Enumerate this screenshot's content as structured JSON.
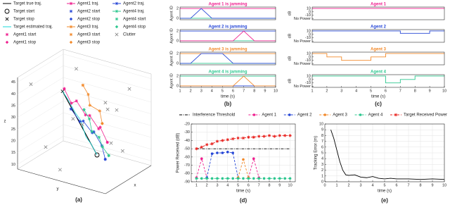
{
  "chart_data": [
    {
      "type": "line3d",
      "caption": "(a)",
      "x_label": "x",
      "y_label": "y",
      "z_label": "z",
      "xlim": [
        0,
        50
      ],
      "ylim": [
        0,
        50
      ],
      "zlim": [
        8,
        47
      ],
      "zticks": [
        10,
        15,
        20,
        25,
        30,
        35,
        40,
        45
      ],
      "grid": true,
      "series": [
        {
          "name": "Target true traj.",
          "color": "#000000",
          "line": "solid",
          "x": [
            10,
            30
          ],
          "y": [
            40,
            10
          ],
          "z": [
            20,
            36
          ]
        },
        {
          "name": "Target start",
          "color": "#000000",
          "line": "none",
          "marker": "ring",
          "x": [
            10
          ],
          "y": [
            40
          ],
          "z": [
            20
          ]
        },
        {
          "name": "Target stop",
          "color": "#000000",
          "line": "none",
          "marker": "cross",
          "x": [
            30
          ],
          "y": [
            10
          ],
          "z": [
            36
          ]
        },
        {
          "name": "Target estimated traj.",
          "color": "#18d8d8",
          "line": "solid",
          "x": [
            10,
            13,
            17,
            21,
            25,
            28,
            30
          ],
          "y": [
            40,
            35,
            30,
            25,
            20,
            14,
            10
          ],
          "z": [
            20,
            23,
            24,
            29,
            30,
            34,
            36
          ]
        },
        {
          "name": "Agent1 start",
          "color": "#ef1f8f",
          "line": "none",
          "marker": "star",
          "x": [
            28
          ],
          "y": [
            12
          ],
          "z": [
            38
          ]
        },
        {
          "name": "Agent1 stop",
          "color": "#ef1f8f",
          "line": "none",
          "marker": "diamond",
          "x": [
            29
          ],
          "y": [
            36
          ],
          "z": [
            20
          ]
        },
        {
          "name": "Agent1 traj.",
          "color": "#ef1f8f",
          "line": "solid",
          "marker": "star",
          "x": [
            28,
            30,
            26,
            32,
            27,
            31,
            25,
            29
          ],
          "y": [
            12,
            15,
            20,
            22,
            27,
            30,
            34,
            36
          ],
          "z": [
            38,
            32,
            35,
            28,
            30,
            24,
            27,
            20
          ]
        },
        {
          "name": "Agent2 start",
          "color": "#2546d6",
          "line": "none",
          "marker": "star",
          "x": [
            20
          ],
          "y": [
            20
          ],
          "z": [
            33
          ]
        },
        {
          "name": "Agent2 stop",
          "color": "#2546d6",
          "line": "none",
          "marker": "diamond",
          "x": [
            19
          ],
          "y": [
            40
          ],
          "z": [
            16
          ]
        },
        {
          "name": "Agent3 traj.",
          "color": "#f2892a",
          "line": "solid",
          "marker": "star",
          "x": [
            33,
            35,
            31,
            36,
            33
          ],
          "y": [
            20,
            22,
            25,
            28,
            31
          ],
          "z": [
            40,
            36,
            33,
            30,
            26
          ]
        },
        {
          "name": "Agent3 start",
          "color": "#f2892a",
          "line": "none",
          "marker": "star",
          "x": [
            33
          ],
          "y": [
            20
          ],
          "z": [
            40
          ]
        },
        {
          "name": "Agent3 stop",
          "color": "#f2892a",
          "line": "none",
          "marker": "diamond",
          "x": [
            33
          ],
          "y": [
            31
          ],
          "z": [
            26
          ]
        },
        {
          "name": "Agent2 traj.",
          "color": "#2546d6",
          "line": "solid",
          "marker": "star",
          "x": [
            20,
            22,
            18,
            24,
            20,
            23,
            19
          ],
          "y": [
            20,
            24,
            28,
            30,
            33,
            36,
            40
          ],
          "z": [
            33,
            28,
            30,
            24,
            26,
            20,
            16
          ]
        },
        {
          "name": "Agent4 traj.",
          "color": "#2dc78f",
          "line": "solid",
          "marker": "star",
          "x": [
            15,
            17,
            14,
            18,
            16,
            19
          ],
          "y": [
            30,
            32,
            35,
            37,
            40,
            42
          ],
          "z": [
            36,
            32,
            28,
            25,
            22,
            18
          ]
        },
        {
          "name": "Agent4 start",
          "color": "#2dc78f",
          "line": "none",
          "marker": "star",
          "x": [
            15
          ],
          "y": [
            30
          ],
          "z": [
            36
          ]
        },
        {
          "name": "Agent4 stop",
          "color": "#2dc78f",
          "line": "none",
          "marker": "diamond",
          "x": [
            19
          ],
          "y": [
            42
          ],
          "z": [
            18
          ]
        },
        {
          "name": "Clutter",
          "color": "#888888",
          "line": "none",
          "marker": "cross",
          "x": [
            5,
            45,
            12,
            38,
            25,
            48,
            3,
            30,
            42,
            8,
            20,
            35
          ],
          "y": [
            5,
            10,
            45,
            40,
            3,
            25,
            30,
            48,
            15,
            20,
            46,
            35
          ],
          "z": [
            44,
            42,
            40,
            15,
            12,
            30,
            35,
            45,
            20,
            10,
            38,
            18
          ]
        }
      ]
    },
    {
      "type": "line",
      "title": "Agent 1 is jamming",
      "title_color": "#ef1f8f",
      "y_label": "Agent ID",
      "x": [
        1,
        2,
        3,
        4,
        5,
        6,
        7,
        8,
        9,
        10
      ],
      "xlim": [
        1,
        10
      ],
      "ylim": [
        -0.3,
        2.3
      ],
      "yticks": [
        0,
        2
      ],
      "series": [
        {
          "color": "#ef1f8f",
          "values": [
            2,
            2,
            2,
            2,
            2,
            2,
            2,
            2,
            2,
            2
          ]
        },
        {
          "color": "#2dc78f",
          "values": [
            0,
            0,
            0,
            0,
            0,
            0,
            0,
            0,
            0,
            0
          ]
        },
        {
          "color": "#2546d6",
          "values": [
            0,
            0,
            2,
            0,
            0,
            0,
            0,
            0,
            0,
            0
          ]
        }
      ]
    },
    {
      "type": "line",
      "title": "Agent 2 is jamming",
      "title_color": "#2546d6",
      "y_label": "Agent ID",
      "x": [
        1,
        2,
        3,
        4,
        5,
        6,
        7,
        8,
        9,
        10
      ],
      "xlim": [
        1,
        10
      ],
      "ylim": [
        -0.3,
        2.3
      ],
      "yticks": [
        0,
        2
      ],
      "series": [
        {
          "color": "#2546d6",
          "values": [
            2,
            2,
            2,
            2,
            2,
            2,
            2,
            2,
            2,
            2
          ]
        },
        {
          "color": "#2dc78f",
          "values": [
            0,
            0,
            0,
            0,
            0,
            0,
            0,
            0,
            0,
            0
          ]
        },
        {
          "color": "#ef1f8f",
          "values": [
            0,
            0,
            0,
            0,
            0,
            0,
            2,
            0,
            0,
            0
          ]
        }
      ]
    },
    {
      "type": "line",
      "title": "Agent 3 is jamming",
      "title_color": "#f2892a",
      "y_label": "Agent ID",
      "x": [
        1,
        2,
        3,
        4,
        5,
        6,
        7,
        8,
        9,
        10
      ],
      "xlim": [
        1,
        10
      ],
      "ylim": [
        -0.3,
        2.3
      ],
      "yticks": [
        0,
        2
      ],
      "series": [
        {
          "color": "#f2892a",
          "values": [
            2,
            2,
            2,
            2,
            2,
            2,
            2,
            2,
            2,
            2
          ]
        },
        {
          "color": "#2dc78f",
          "values": [
            0,
            0,
            0,
            0,
            0,
            0,
            0,
            0,
            0,
            0
          ]
        },
        {
          "color": "#2546d6",
          "values": [
            0,
            0,
            2,
            2,
            2,
            0,
            0,
            0,
            0,
            0
          ]
        }
      ]
    },
    {
      "type": "line",
      "title": "Agent 4 is jamming",
      "title_color": "#2dc78f",
      "y_label": "Agent ID",
      "x_label": "time (s)",
      "caption": "(b)",
      "x": [
        1,
        2,
        3,
        4,
        5,
        6,
        7,
        8,
        9,
        10
      ],
      "xlim": [
        1,
        10
      ],
      "xticks": [
        1,
        2,
        3,
        4,
        5,
        6,
        7,
        8,
        9,
        10
      ],
      "ylim": [
        -0.3,
        2.3
      ],
      "yticks": [
        0,
        2
      ],
      "series": [
        {
          "color": "#2dc78f",
          "values": [
            2,
            2,
            2,
            2,
            2,
            2,
            2,
            2,
            2,
            2
          ]
        },
        {
          "color": "#2546d6",
          "values": [
            0,
            0,
            0,
            0,
            0,
            0,
            0,
            0,
            0,
            0
          ]
        },
        {
          "color": "#f2892a",
          "values": [
            0,
            0,
            0,
            0,
            0,
            0,
            2,
            0,
            0,
            0
          ]
        }
      ]
    },
    {
      "type": "step",
      "title": "Agent 1",
      "title_color": "#ef1f8f",
      "y_label": "dB",
      "x": [
        1,
        2,
        3,
        4,
        5,
        6,
        7,
        8,
        9,
        10
      ],
      "xlim": [
        1,
        10
      ],
      "ylim": [
        -23,
        14
      ],
      "yticks": [
        10,
        0,
        -10,
        {
          "value": -20,
          "label": "No Power"
        }
      ],
      "series": [
        {
          "color": "#ef1f8f",
          "values": [
            10,
            10,
            10,
            10,
            10,
            10,
            10,
            10,
            10,
            10
          ]
        }
      ]
    },
    {
      "type": "step",
      "title": "Agent 2",
      "title_color": "#2546d6",
      "y_label": "dB",
      "x": [
        1,
        2,
        3,
        4,
        5,
        6,
        7,
        8,
        9,
        10
      ],
      "xlim": [
        1,
        10
      ],
      "ylim": [
        -23,
        14
      ],
      "yticks": [
        10,
        0,
        -10,
        {
          "value": -20,
          "label": "No Power"
        }
      ],
      "series": [
        {
          "color": "#2546d6",
          "values": [
            10,
            10,
            10,
            10,
            10,
            10,
            3,
            3,
            10,
            10
          ]
        }
      ]
    },
    {
      "type": "step",
      "title": "Agent 3",
      "title_color": "#f2892a",
      "y_label": "dB",
      "x": [
        1,
        2,
        3,
        4,
        5,
        6,
        7,
        8,
        9,
        10
      ],
      "xlim": [
        1,
        10
      ],
      "ylim": [
        -23,
        14
      ],
      "yticks": [
        10,
        0,
        -10,
        {
          "value": -20,
          "label": "No Power"
        }
      ],
      "series": [
        {
          "color": "#f2892a",
          "values": [
            10,
            0,
            -10,
            -10,
            0,
            10,
            10,
            10,
            10,
            10
          ]
        }
      ]
    },
    {
      "type": "step",
      "title": "Agent 4",
      "title_color": "#2dc78f",
      "y_label": "dB",
      "x_label": "time (s)",
      "caption": "(c)",
      "x": [
        1,
        2,
        3,
        4,
        5,
        6,
        7,
        8,
        9,
        10
      ],
      "xlim": [
        1,
        10
      ],
      "xticks": [
        1,
        2,
        3,
        4,
        5,
        6,
        7,
        8,
        9,
        10
      ],
      "ylim": [
        -23,
        14
      ],
      "yticks": [
        10,
        0,
        -10,
        {
          "value": -20,
          "label": "No Power"
        }
      ],
      "series": [
        {
          "color": "#2dc78f",
          "values": [
            10,
            10,
            10,
            10,
            10,
            -10,
            0,
            10,
            10,
            10
          ]
        }
      ]
    },
    {
      "type": "line",
      "y_label": "Power Received (dB)",
      "x_label": "time (s)",
      "caption": "(d)",
      "legend": "top",
      "grid": true,
      "x": [
        1,
        1.5,
        2,
        2.5,
        3,
        3.5,
        4,
        4.5,
        5,
        5.5,
        6,
        6.5,
        7,
        7.5,
        8,
        8.5,
        9,
        9.5,
        10
      ],
      "xlim": [
        0.5,
        10.5
      ],
      "xticks": [
        1,
        2,
        3,
        4,
        5,
        6,
        7,
        8,
        9,
        10
      ],
      "ylim": [
        -90,
        -20
      ],
      "yticks": [
        -90,
        -80,
        -70,
        -60,
        -50,
        -40,
        -30,
        -20
      ],
      "series": [
        {
          "name": "Interference Threshold",
          "color": "#000000",
          "line": "dashdot",
          "values": [
            -50,
            -50,
            -50,
            -50,
            -50,
            -50,
            -50,
            -50,
            -50,
            -50,
            -50,
            -50,
            -50,
            -50,
            -50,
            -50,
            -50,
            -50,
            -50
          ]
        },
        {
          "name": "Agent 1",
          "color": "#ef1f8f",
          "line": "dashed",
          "marker": "circle",
          "values": [
            -85,
            -62,
            -85,
            null,
            null,
            null,
            null,
            null,
            null,
            null,
            -85,
            -62,
            -85,
            null,
            null,
            null,
            null,
            null,
            null
          ]
        },
        {
          "name": "Agent 2",
          "color": "#2546d6",
          "line": "dashed",
          "marker": "circle",
          "values": [
            null,
            null,
            -85,
            -56,
            -55,
            -55,
            -54,
            -55,
            -85,
            null,
            null,
            null,
            null,
            null,
            null,
            null,
            null,
            null,
            null
          ]
        },
        {
          "name": "Agent 3",
          "color": "#f2892a",
          "line": "dashed",
          "marker": "circle",
          "values": [
            null,
            null,
            null,
            null,
            null,
            null,
            null,
            null,
            -85,
            -63,
            -85,
            null,
            null,
            null,
            null,
            null,
            null,
            null,
            null
          ]
        },
        {
          "name": "Agent 4",
          "color": "#2dc78f",
          "line": "dashed",
          "marker": "circle",
          "values": [
            -86,
            -86,
            -86,
            -86,
            -86,
            -86,
            -86,
            -86,
            -86,
            -86,
            -86,
            -86,
            -86,
            -86,
            -86,
            -86,
            -86,
            -86,
            -86
          ]
        },
        {
          "name": "Target Received Power",
          "color": "#e8201c",
          "line": "dashed",
          "marker": "star",
          "values": [
            -50,
            -48,
            -45,
            -44,
            -41,
            -40,
            -39,
            -38,
            -37,
            -37,
            -36,
            -36,
            -35,
            -35,
            -34,
            -35,
            -34,
            -34,
            -34
          ]
        }
      ]
    },
    {
      "type": "line",
      "y_label": "Tracking Error (m)",
      "x_label": "time (s)",
      "caption": "(e)",
      "grid": true,
      "x": [
        0.5,
        0.75,
        1,
        1.25,
        1.5,
        1.75,
        2,
        2.5,
        3,
        3.5,
        4,
        4.5,
        5,
        5.5,
        6,
        7,
        8,
        9,
        10
      ],
      "xlim": [
        0,
        10
      ],
      "xticks": [
        0,
        1,
        2,
        3,
        4,
        5,
        6,
        7,
        8,
        9,
        10
      ],
      "ylim": [
        0,
        10
      ],
      "yticks": [
        0,
        1,
        2,
        3,
        4,
        5,
        6,
        7,
        8,
        9,
        10
      ],
      "series": [
        {
          "color": "#000000",
          "line": "solid",
          "values": [
            9,
            7.5,
            5.5,
            3.5,
            2,
            1.2,
            1.1,
            1.2,
            0.8,
            0.7,
            0.9,
            0.6,
            0.5,
            0.6,
            0.5,
            0.5,
            0.4,
            0.5,
            0.4
          ]
        }
      ]
    }
  ]
}
